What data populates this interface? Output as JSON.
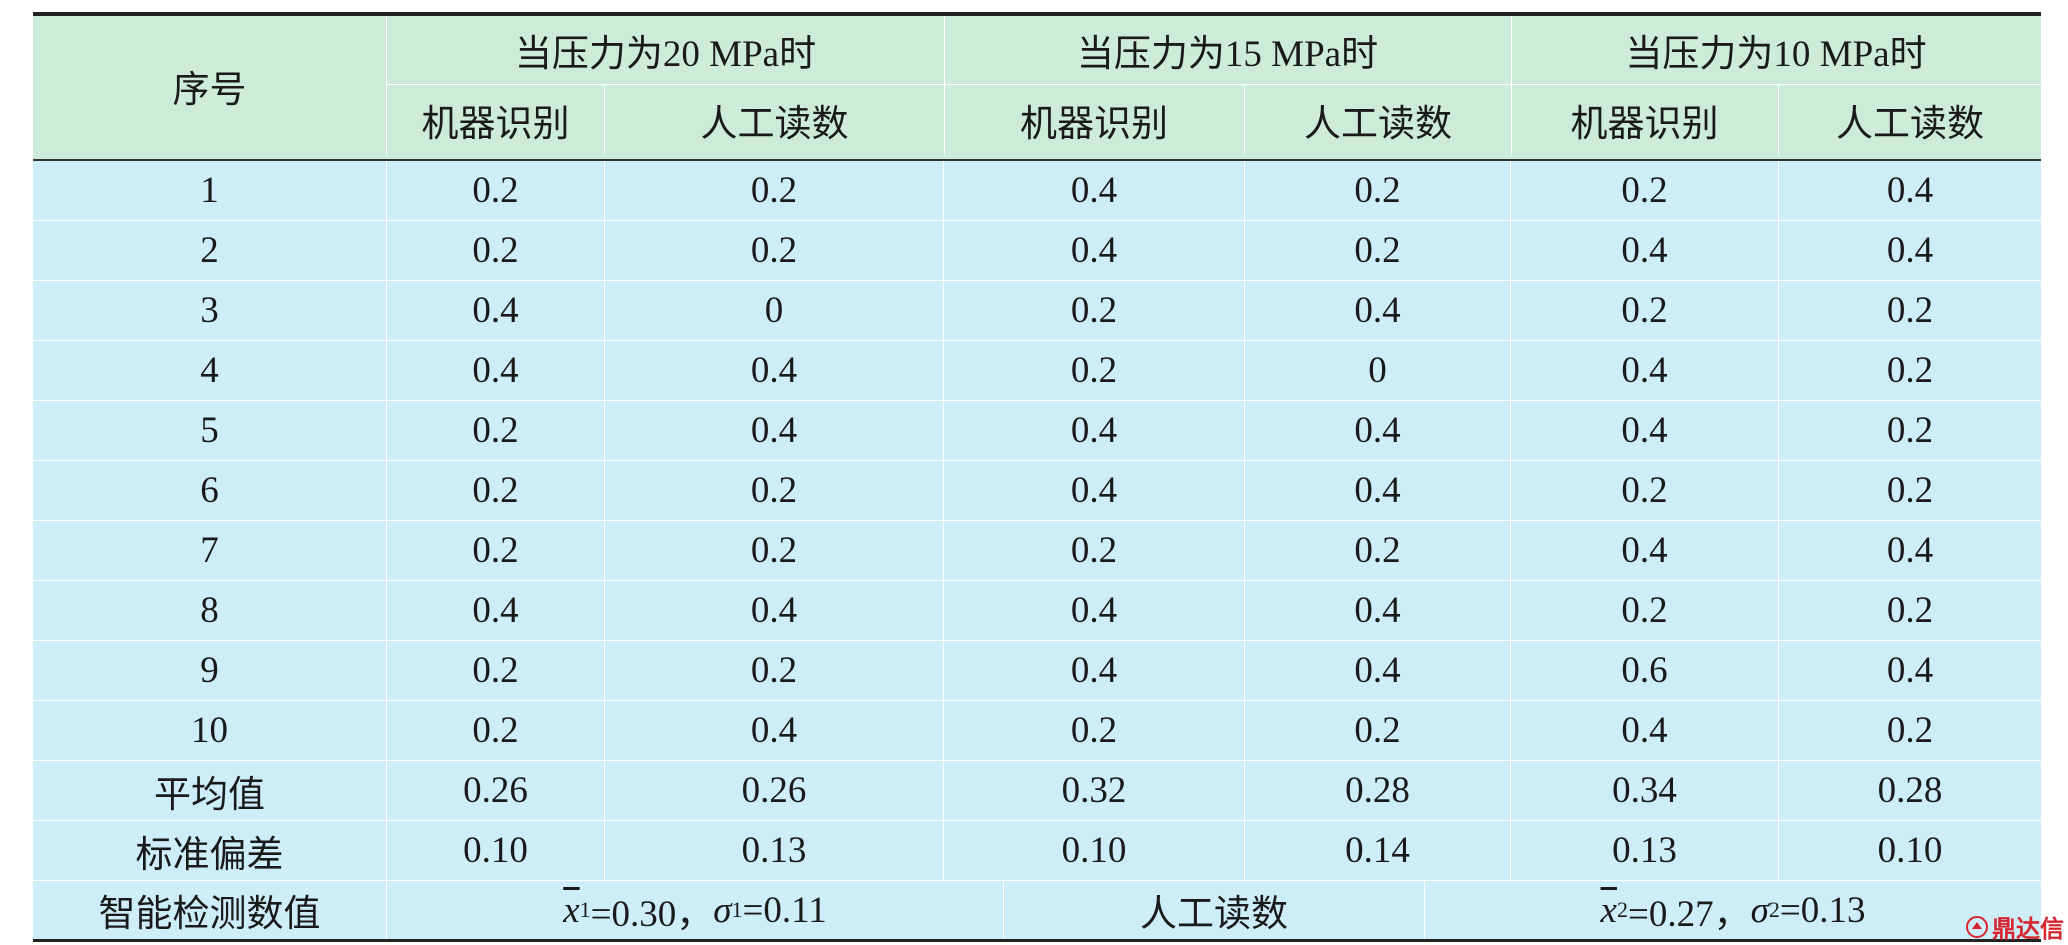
{
  "header": {
    "seq": "序号",
    "groups": [
      {
        "title": "当压力为20 MPa时",
        "sub": [
          "机器识别",
          "人工读数"
        ]
      },
      {
        "title": "当压力为15 MPa时",
        "sub": [
          "机器识别",
          "人工读数"
        ]
      },
      {
        "title": "当压力为10 MPa时",
        "sub": [
          "机器识别",
          "人工读数"
        ]
      }
    ]
  },
  "rows": [
    [
      "1",
      "0.2",
      "0.2",
      "0.4",
      "0.2",
      "0.2",
      "0.4"
    ],
    [
      "2",
      "0.2",
      "0.2",
      "0.4",
      "0.2",
      "0.4",
      "0.4"
    ],
    [
      "3",
      "0.4",
      "0",
      "0.2",
      "0.4",
      "0.2",
      "0.2"
    ],
    [
      "4",
      "0.4",
      "0.4",
      "0.2",
      "0",
      "0.4",
      "0.2"
    ],
    [
      "5",
      "0.2",
      "0.4",
      "0.4",
      "0.4",
      "0.4",
      "0.2"
    ],
    [
      "6",
      "0.2",
      "0.2",
      "0.4",
      "0.4",
      "0.2",
      "0.2"
    ],
    [
      "7",
      "0.2",
      "0.2",
      "0.2",
      "0.2",
      "0.4",
      "0.4"
    ],
    [
      "8",
      "0.4",
      "0.4",
      "0.4",
      "0.4",
      "0.2",
      "0.2"
    ],
    [
      "9",
      "0.2",
      "0.2",
      "0.4",
      "0.4",
      "0.6",
      "0.4"
    ],
    [
      "10",
      "0.2",
      "0.4",
      "0.2",
      "0.2",
      "0.4",
      "0.2"
    ],
    [
      "平均值",
      "0.26",
      "0.26",
      "0.32",
      "0.28",
      "0.34",
      "0.28"
    ],
    [
      "标准偏差",
      "0.10",
      "0.13",
      "0.10",
      "0.14",
      "0.13",
      "0.10"
    ]
  ],
  "footer": {
    "label": "智能检测数值",
    "machine": {
      "x": "x",
      "x_sub": "1",
      "x_val": "=0.30，",
      "sigma": "σ",
      "sigma_sub": "1",
      "sigma_val": "=0.11"
    },
    "middle": "人工读数",
    "manual": {
      "x": "x",
      "x_sub": "2",
      "x_val": "=0.27，",
      "sigma": "σ",
      "sigma_sub": "2",
      "sigma_val": "=0.13"
    }
  },
  "watermark": "鼎达信"
}
